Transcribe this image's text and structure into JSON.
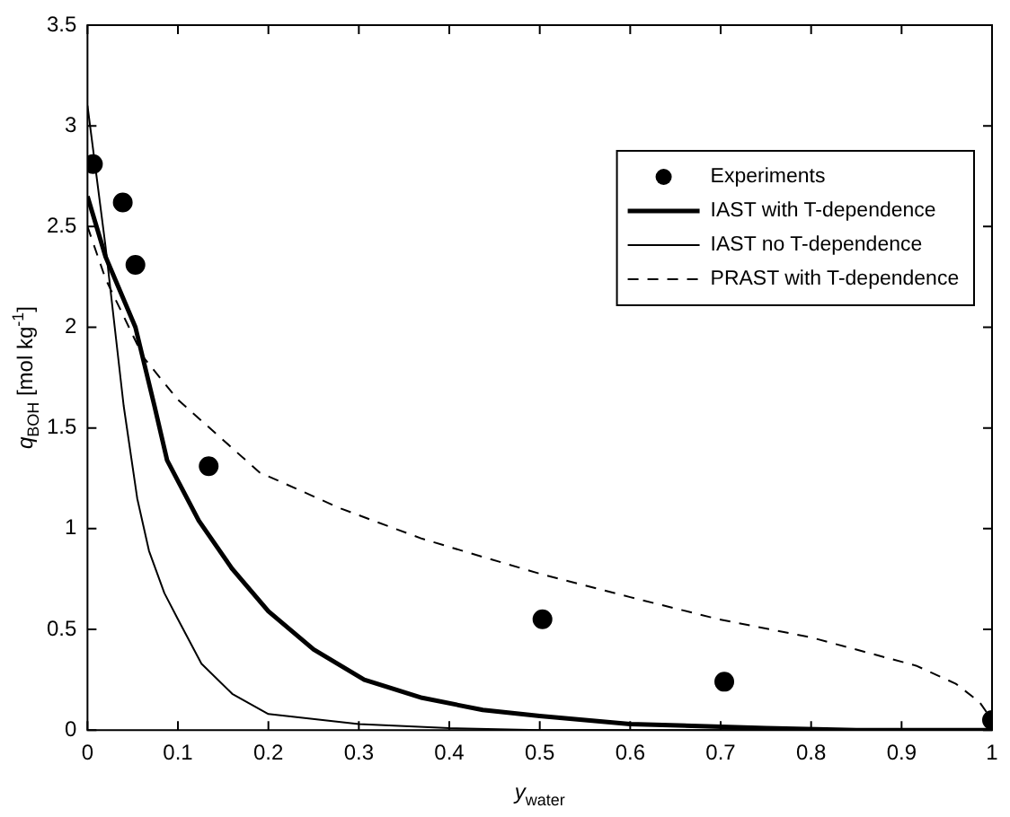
{
  "chart_data": {
    "type": "line",
    "xlabel": "y$_{water}$",
    "ylabel": "q$_{BOH}$ [mol kg$^{-1}$]",
    "xlim": [
      0,
      1
    ],
    "xticks": [
      0,
      0.1,
      0.2,
      0.3,
      0.4,
      0.5,
      0.6,
      0.7,
      0.8,
      0.9,
      1
    ],
    "ylim": [
      0,
      3.5
    ],
    "yticks": [
      0,
      0.5,
      1,
      1.5,
      2,
      2.5,
      3,
      3.5
    ],
    "grid": false,
    "legend": "top right",
    "series": [
      {
        "name": "Experiments",
        "type": "scatter",
        "marker": "circle",
        "color": "#000000",
        "x": [
          0.006,
          0.039,
          0.053,
          0.134,
          0.503,
          0.704,
          1.0
        ],
        "values": [
          2.81,
          2.62,
          2.31,
          1.31,
          0.55,
          0.24,
          0.05
        ]
      },
      {
        "name": "IAST with T-dependence",
        "marker": "none",
        "line_style": "solid",
        "color": "#000000",
        "x": [
          0,
          0.02,
          0.053,
          0.074,
          0.088,
          0.123,
          0.16,
          0.2,
          0.25,
          0.306,
          0.37,
          0.437,
          0.5,
          0.6,
          0.75,
          0.85,
          1
        ],
        "values": [
          2.65,
          2.35,
          2.0,
          1.61,
          1.34,
          1.04,
          0.8,
          0.59,
          0.4,
          0.25,
          0.16,
          0.1,
          0.07,
          0.03,
          0.01,
          0,
          0
        ]
      },
      {
        "name": "IAST no T-dependence",
        "marker": "none",
        "line_style": "solid",
        "color": "#000000",
        "x": [
          0,
          0.02,
          0.04,
          0.055,
          0.068,
          0.085,
          0.1,
          0.126,
          0.16,
          0.2,
          0.3,
          0.4,
          0.5,
          0.7,
          1
        ],
        "values": [
          3.1,
          2.4,
          1.61,
          1.15,
          0.89,
          0.68,
          0.55,
          0.33,
          0.18,
          0.08,
          0.03,
          0.01,
          0,
          0,
          0
        ]
      },
      {
        "name": "PRAST with T-dependence",
        "marker": "none",
        "line_style": "dashed",
        "color": "#000000",
        "x": [
          0,
          0.02,
          0.062,
          0.1,
          0.19,
          0.28,
          0.37,
          0.437,
          0.505,
          0.6,
          0.698,
          0.8,
          0.916,
          0.96,
          0.986,
          1
        ],
        "values": [
          2.5,
          2.24,
          1.85,
          1.64,
          1.28,
          1.1,
          0.95,
          0.86,
          0.77,
          0.66,
          0.55,
          0.46,
          0.32,
          0.23,
          0.14,
          0.05
        ]
      }
    ]
  }
}
